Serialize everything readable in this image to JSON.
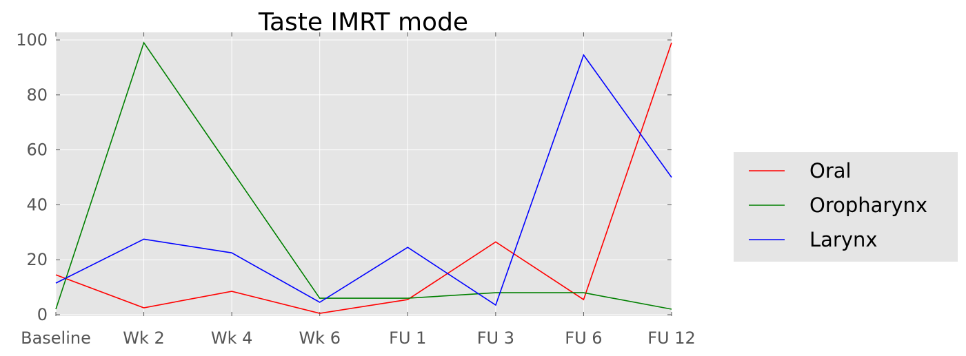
{
  "chart_data": {
    "type": "line",
    "title": "Taste IMRT  mode",
    "xlabel": "",
    "ylabel": "",
    "categories": [
      "Baseline",
      "Wk 2",
      "Wk 4",
      "Wk 6",
      "FU 1",
      "FU 3",
      "FU 6",
      "FU 12"
    ],
    "ylim": [
      0,
      100
    ],
    "yticks": [
      0,
      20,
      40,
      60,
      80,
      100
    ],
    "grid": true,
    "legend_position": "right",
    "series": [
      {
        "name": "Oral",
        "color": "#ff0000",
        "values": [
          14.5,
          2.5,
          8.5,
          0.5,
          5.5,
          26.5,
          5.5,
          99
        ]
      },
      {
        "name": "Oropharynx",
        "color": "#008000",
        "values": [
          2,
          99,
          52.5,
          6,
          6,
          8,
          8,
          2
        ]
      },
      {
        "name": "Larynx",
        "color": "#0000ff",
        "values": [
          11.5,
          27.5,
          22.5,
          4.5,
          24.5,
          3.5,
          94.5,
          50
        ]
      }
    ]
  },
  "colors": {
    "plot_background": "#e5e5e5",
    "grid": "#ffffff",
    "tick_text": "#555555"
  }
}
